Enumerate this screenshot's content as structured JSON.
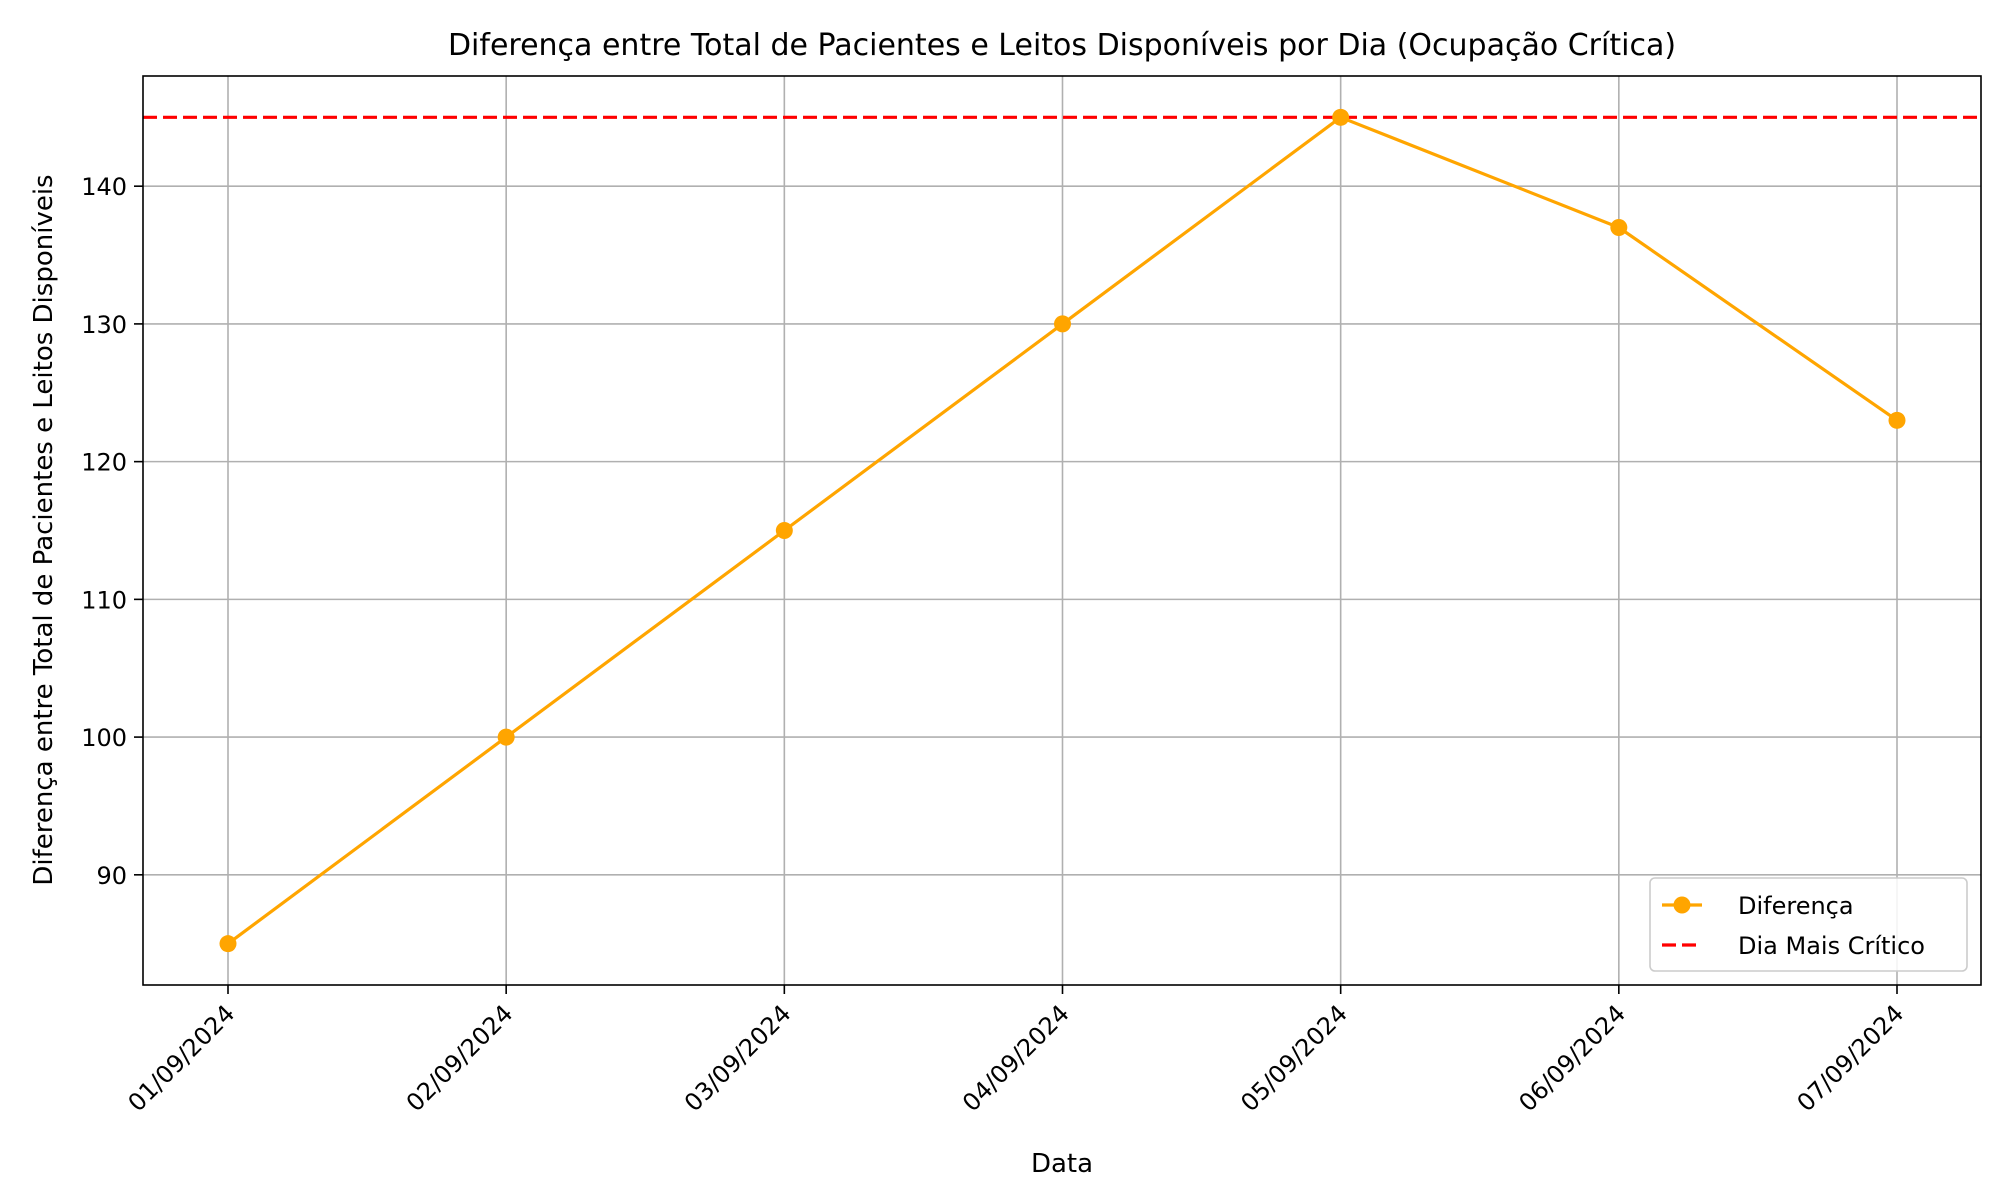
{
  "chart_data": {
    "type": "line",
    "title": "Diferença entre Total de Pacientes e Leitos Disponíveis por Dia (Ocupação Crítica)",
    "xlabel": "Data",
    "ylabel": "Diferença entre Total de Pacientes e Leitos Disponíveis",
    "categories": [
      "01/09/2024",
      "02/09/2024",
      "03/09/2024",
      "04/09/2024",
      "05/09/2024",
      "06/09/2024",
      "07/09/2024"
    ],
    "series": [
      {
        "name": "Diferença",
        "values": [
          85,
          100,
          115,
          130,
          145,
          137,
          123
        ],
        "color": "#FFA500",
        "marker": "circle"
      }
    ],
    "reference_lines": [
      {
        "name": "Dia Mais Crítico",
        "y": 145,
        "color": "#FF0000",
        "style": "dashed"
      }
    ],
    "ylim": [
      82,
      148
    ],
    "yticks": [
      90,
      100,
      110,
      120,
      130,
      140
    ],
    "grid": true,
    "legend_position": "lower-right"
  }
}
